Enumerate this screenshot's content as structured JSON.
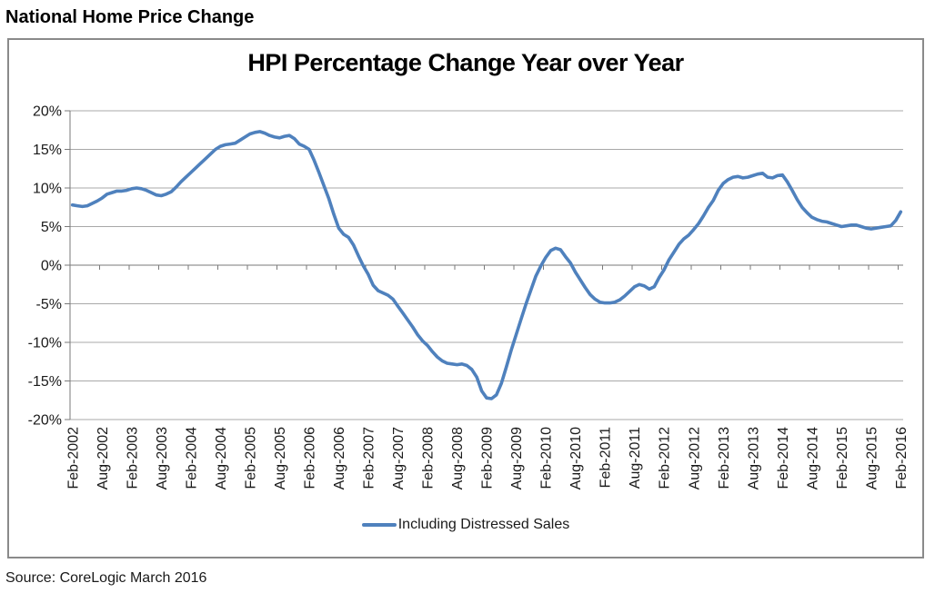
{
  "page": {
    "header_title": "National Home Price Change",
    "source_note": "Source: CoreLogic March 2016"
  },
  "style": {
    "line_color": "#4F81BD",
    "grid_color": "#A8A8A8",
    "axis_color": "#7A7A7A",
    "border_color": "#8A8A8A",
    "text_color": "#1A1A1A"
  },
  "chart_data": {
    "type": "line",
    "title": "HPI Percentage Change Year over Year",
    "legend_label": "Including Distressed Sales",
    "legend_position": "bottom",
    "grid": true,
    "ylim": [
      -20,
      20
    ],
    "y_ticks": [
      20,
      15,
      10,
      5,
      0,
      -5,
      -10,
      -15,
      -20
    ],
    "y_tick_suffix": "%",
    "x_tick_every_months": 6,
    "x_tick_labels": [
      "Feb-2002",
      "Aug-2002",
      "Feb-2003",
      "Aug-2003",
      "Feb-2004",
      "Aug-2004",
      "Feb-2005",
      "Aug-2005",
      "Feb-2006",
      "Aug-2006",
      "Feb-2007",
      "Aug-2007",
      "Feb-2008",
      "Aug-2008",
      "Feb-2009",
      "Aug-2009",
      "Feb-2010",
      "Aug-2010",
      "Feb-2011",
      "Aug-2011",
      "Feb-2012",
      "Aug-2012",
      "Feb-2013",
      "Aug-2013",
      "Feb-2014",
      "Aug-2014",
      "Feb-2015",
      "Aug-2015",
      "Feb-2016"
    ],
    "series": [
      {
        "name": "Including Distressed Sales",
        "start_month": "Feb-2002",
        "end_month": "Feb-2016",
        "interval": "monthly",
        "unit": "percent",
        "values": [
          7.8,
          7.7,
          7.6,
          7.7,
          8.0,
          8.3,
          8.7,
          9.2,
          9.4,
          9.6,
          9.6,
          9.7,
          9.9,
          10.0,
          9.9,
          9.7,
          9.4,
          9.1,
          9.0,
          9.2,
          9.5,
          10.1,
          10.8,
          11.4,
          12.0,
          12.6,
          13.2,
          13.8,
          14.4,
          15.0,
          15.4,
          15.6,
          15.7,
          15.8,
          16.2,
          16.6,
          17.0,
          17.2,
          17.3,
          17.1,
          16.8,
          16.6,
          16.5,
          16.7,
          16.8,
          16.4,
          15.7,
          15.4,
          15.0,
          13.6,
          12.0,
          10.3,
          8.6,
          6.6,
          4.8,
          4.0,
          3.6,
          2.6,
          1.2,
          -0.1,
          -1.2,
          -2.6,
          -3.3,
          -3.6,
          -3.9,
          -4.4,
          -5.3,
          -6.2,
          -7.1,
          -8.0,
          -9.0,
          -9.8,
          -10.4,
          -11.2,
          -11.9,
          -12.4,
          -12.7,
          -12.8,
          -12.9,
          -12.8,
          -13.0,
          -13.5,
          -14.5,
          -16.3,
          -17.2,
          -17.3,
          -16.8,
          -15.3,
          -13.2,
          -11.0,
          -9.0,
          -7.0,
          -5.0,
          -3.2,
          -1.4,
          -0.1,
          1.0,
          1.9,
          2.2,
          2.0,
          1.1,
          0.3,
          -0.9,
          -1.9,
          -2.9,
          -3.8,
          -4.4,
          -4.8,
          -4.9,
          -4.9,
          -4.8,
          -4.5,
          -4.0,
          -3.4,
          -2.8,
          -2.5,
          -2.7,
          -3.1,
          -2.8,
          -1.6,
          -0.6,
          0.7,
          1.7,
          2.7,
          3.4,
          3.9,
          4.6,
          5.4,
          6.4,
          7.5,
          8.4,
          9.7,
          10.6,
          11.1,
          11.4,
          11.5,
          11.3,
          11.4,
          11.6,
          11.8,
          11.9,
          11.4,
          11.3,
          11.6,
          11.7,
          10.8,
          9.7,
          8.5,
          7.5,
          6.8,
          6.2,
          5.9,
          5.7,
          5.6,
          5.4,
          5.2,
          5.0,
          5.1,
          5.2,
          5.2,
          5.0,
          4.8,
          4.7,
          4.8,
          4.9,
          5.0,
          5.1,
          5.8,
          6.9
        ]
      }
    ]
  }
}
